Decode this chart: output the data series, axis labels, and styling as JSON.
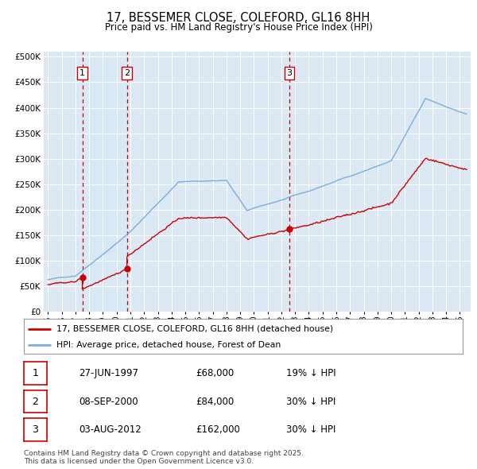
{
  "title": "17, BESSEMER CLOSE, COLEFORD, GL16 8HH",
  "subtitle": "Price paid vs. HM Land Registry's House Price Index (HPI)",
  "background_color": "#ffffff",
  "plot_bg_color": "#dce9f5",
  "sale_dates_float": [
    1997.5,
    2000.75,
    2012.583
  ],
  "sale_prices": [
    68000,
    84000,
    162000
  ],
  "sale_labels": [
    "1",
    "2",
    "3"
  ],
  "legend_house": "17, BESSEMER CLOSE, COLEFORD, GL16 8HH (detached house)",
  "legend_hpi": "HPI: Average price, detached house, Forest of Dean",
  "table_rows": [
    {
      "label": "1",
      "date": "27-JUN-1997",
      "price": "£68,000",
      "hpi": "19% ↓ HPI"
    },
    {
      "label": "2",
      "date": "08-SEP-2000",
      "price": "£84,000",
      "hpi": "30% ↓ HPI"
    },
    {
      "label": "3",
      "date": "03-AUG-2012",
      "price": "£162,000",
      "hpi": "30% ↓ HPI"
    }
  ],
  "footer": "Contains HM Land Registry data © Crown copyright and database right 2025.\nThis data is licensed under the Open Government Licence v3.0.",
  "house_color": "#cc0000",
  "hpi_color": "#7aade0",
  "shade_color": "#d6e8f5",
  "dashed_line_color": "#cc0000"
}
